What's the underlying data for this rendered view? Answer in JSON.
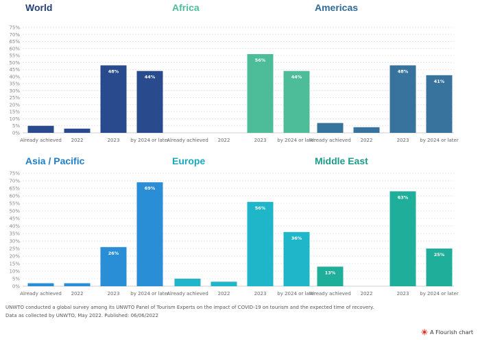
{
  "chart_data": [
    {
      "type": "bar",
      "title": "World",
      "title_color": "#263f7a",
      "color": "#294b8e",
      "categories": [
        "Already achieved",
        "2022",
        "2023",
        "by 2024 or later"
      ],
      "values": [
        5,
        3,
        48,
        44
      ],
      "data_labels": [
        "",
        "",
        "48%",
        "44%"
      ],
      "ylim": [
        0,
        75
      ]
    },
    {
      "type": "bar",
      "title": "Africa",
      "title_color": "#4dbc99",
      "color": "#4dbc99",
      "categories": [
        "Already achieved",
        "2022",
        "2023",
        "by 2024 or later"
      ],
      "values": [
        0,
        0,
        56,
        44
      ],
      "data_labels": [
        "",
        "",
        "56%",
        "44%"
      ],
      "ylim": [
        0,
        75
      ]
    },
    {
      "type": "bar",
      "title": "Americas",
      "title_color": "#2f6b96",
      "color": "#38739e",
      "categories": [
        "Already achieved",
        "2022",
        "2023",
        "by 2024 or later"
      ],
      "values": [
        7,
        4,
        48,
        41
      ],
      "data_labels": [
        "",
        "",
        "48%",
        "41%"
      ],
      "ylim": [
        0,
        75
      ]
    },
    {
      "type": "bar",
      "title": "Asia / Pacific",
      "title_color": "#1f7ec5",
      "color": "#2a8ed6",
      "categories": [
        "Already achieved",
        "2022",
        "2023",
        "by 2024 or later"
      ],
      "values": [
        2,
        2,
        26,
        69
      ],
      "data_labels": [
        "",
        "",
        "26%",
        "69%"
      ],
      "ylim": [
        0,
        75
      ]
    },
    {
      "type": "bar",
      "title": "Europe",
      "title_color": "#1aa8bf",
      "color": "#1fb6c9",
      "categories": [
        "Already achieved",
        "2022",
        "2023",
        "by 2024 or later"
      ],
      "values": [
        5,
        3,
        56,
        36
      ],
      "data_labels": [
        "",
        "",
        "56%",
        "36%"
      ],
      "ylim": [
        0,
        75
      ]
    },
    {
      "type": "bar",
      "title": "Middle East",
      "title_color": "#1c9b8a",
      "color": "#1fae9a",
      "categories": [
        "Already achieved",
        "2022",
        "2023",
        "by 2024 or later"
      ],
      "values": [
        13,
        0,
        63,
        25
      ],
      "data_labels": [
        "13%",
        "",
        "63%",
        "25%"
      ],
      "ylim": [
        0,
        75
      ]
    }
  ],
  "y_ticks": [
    "0%",
    "5%",
    "10%",
    "15%",
    "20%",
    "25%",
    "30%",
    "35%",
    "40%",
    "45%",
    "50%",
    "55%",
    "60%",
    "65%",
    "70%",
    "75%"
  ],
  "footer": {
    "line1": "UNWTO conducted a global survey among its UNWTO Panel of Tourism Experts on the impact of COVID-19 on tourism and the expected time of recovery.",
    "line2": "Data as collected by UNWTO, May 2022. Published: 06/06/2022",
    "credit": "A Flourish chart"
  }
}
